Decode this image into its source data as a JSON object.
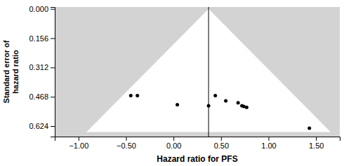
{
  "chart_data": {
    "type": "scatter",
    "xlabel": "Hazard ratio for PFS",
    "ylabel": "Standard error of\nhazard ratio",
    "x": [
      -0.45,
      -0.38,
      0.04,
      0.369,
      0.44,
      0.55,
      0.68,
      0.72,
      0.74,
      0.77,
      1.43
    ],
    "values": [
      0.462,
      0.462,
      0.51,
      0.516,
      0.462,
      0.49,
      0.5,
      0.516,
      0.52,
      0.524,
      0.635
    ],
    "color": "#000000",
    "reference_x": 0.369,
    "funnel_apex_y": 0.0,
    "funnel_base_y": 0.656,
    "funnel_left_x": -0.916,
    "funnel_right_x": 1.654,
    "xlim": [
      -1.25,
      1.75
    ],
    "ylim": [
      0.68,
      -0.01
    ],
    "xticks": [
      {
        "value": -1.0,
        "label": "−1.00"
      },
      {
        "value": -0.5,
        "label": "−0.50"
      },
      {
        "value": 0.0,
        "label": "0.00"
      },
      {
        "value": 0.5,
        "label": "0.50"
      },
      {
        "value": 1.0,
        "label": "1.00"
      },
      {
        "value": 1.5,
        "label": "1.50"
      }
    ],
    "yticks": [
      {
        "value": 0.0,
        "label": "0.000"
      },
      0.156,
      0.312,
      0.468,
      0.624
    ]
  }
}
